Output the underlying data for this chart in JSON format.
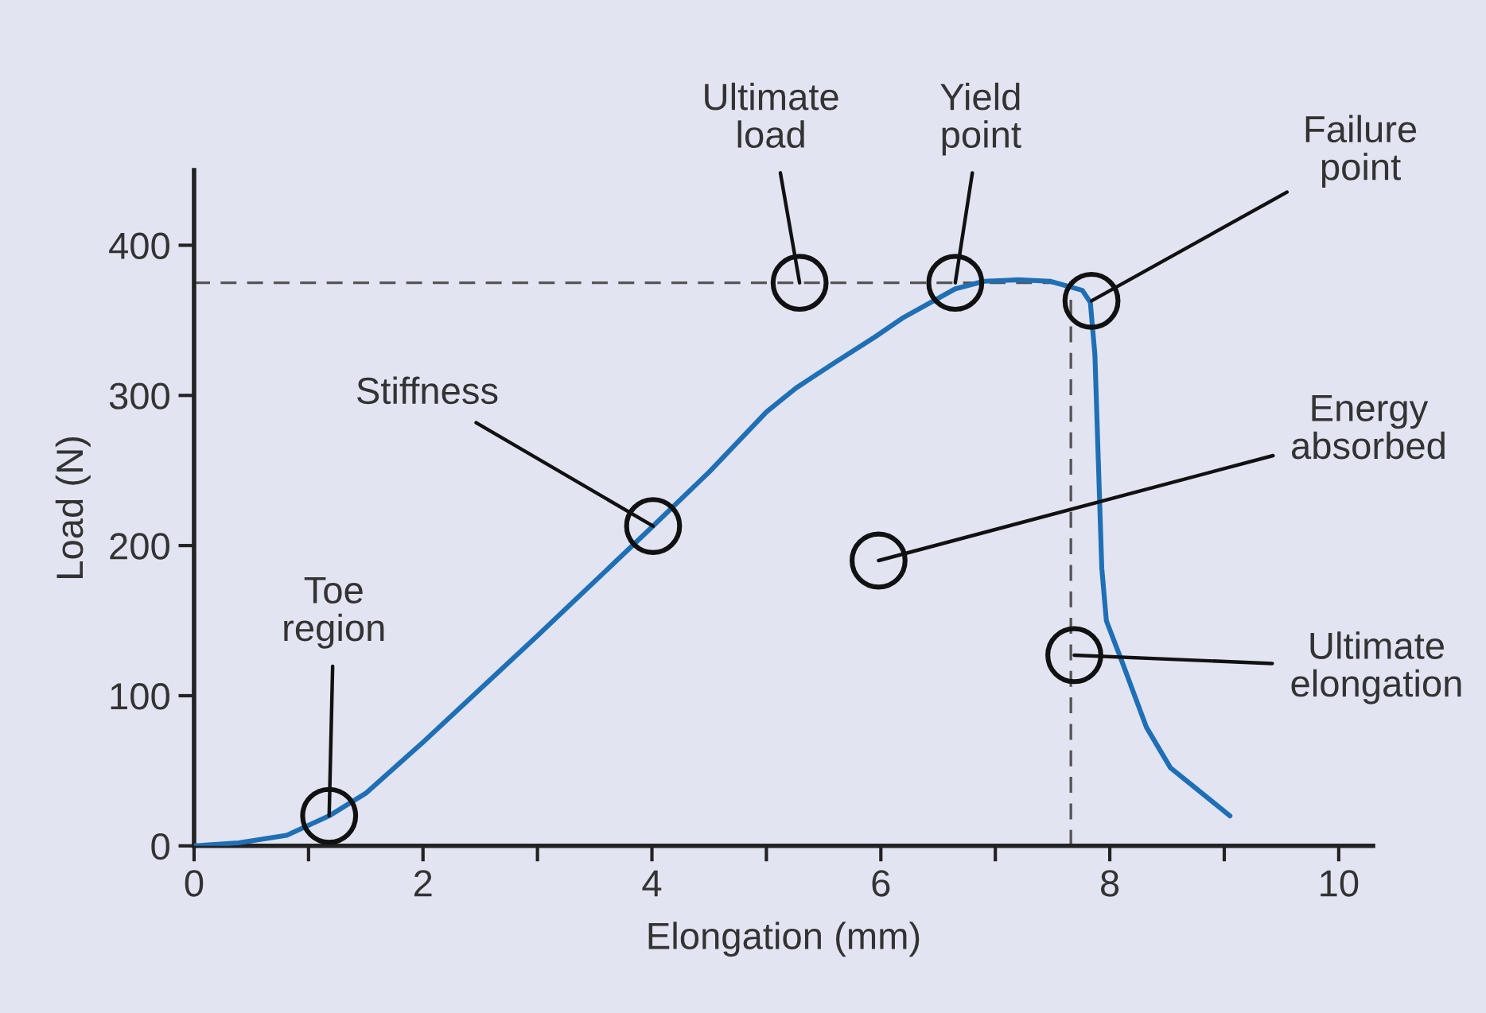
{
  "chart_data": {
    "type": "line",
    "xlabel": "Elongation (mm)",
    "ylabel": "Load (N)",
    "x": [
      0,
      0.39,
      0.81,
      1.18,
      1.5,
      2,
      3,
      4.01,
      4.5,
      5,
      5.26,
      5.6,
      5.95,
      6.2,
      6.65,
      6.9,
      7.2,
      7.48,
      7.76,
      7.83,
      7.87,
      7.9,
      7.93,
      7.97,
      8.11,
      8.32,
      8.53,
      9.05
    ],
    "series": [
      {
        "color": "#1f6fb5",
        "values": [
          0,
          2,
          7,
          20,
          35,
          69,
          140,
          213,
          249,
          289,
          305,
          322,
          339,
          352,
          371,
          376,
          377,
          376,
          370,
          362,
          327,
          256,
          185,
          150,
          122,
          79,
          52,
          20
        ]
      }
    ],
    "xlim": [
      0,
      10.3
    ],
    "ylim": [
      0,
      450
    ],
    "xticks": [
      0,
      {
        "value": 1,
        "label": null
      },
      2,
      {
        "value": 3,
        "label": null
      },
      4,
      {
        "value": 5,
        "label": null
      },
      6,
      {
        "value": 7,
        "label": null
      },
      8,
      {
        "value": 9,
        "label": null
      },
      10
    ],
    "yticks": [
      0,
      100,
      200,
      300,
      400
    ],
    "ref_lines": [
      {
        "axis": "y",
        "value": 375,
        "color": "#555555",
        "line_style": "dashed"
      },
      {
        "axis": "x",
        "value": 7.66,
        "color": "#555555",
        "line_style": "dashed"
      }
    ],
    "annotations": [
      {
        "text": "Toe\nregion",
        "x": 1.18,
        "y": 20
      },
      {
        "text": "Stiffness",
        "x": 4.01,
        "y": 213
      },
      {
        "text": "Ultimate\nload",
        "x": 5.29,
        "y": 375
      },
      {
        "text": "Yield\npoint",
        "x": 6.65,
        "y": 375
      },
      {
        "text": "Failure\npoint",
        "x": 7.84,
        "y": 363
      },
      {
        "text": "Energy\nabsorbed",
        "x": 5.98,
        "y": 190
      },
      {
        "text": "Ultimate\nelongation",
        "x": 7.69,
        "y": 127
      }
    ],
    "grid": false,
    "marker": "none",
    "line_style": "solid"
  }
}
